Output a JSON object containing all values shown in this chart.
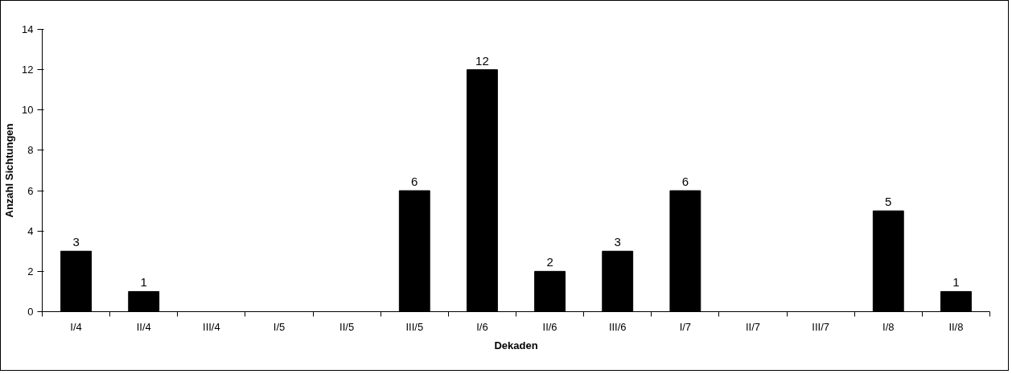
{
  "chart_data": {
    "type": "bar",
    "xlabel": "Dekaden",
    "ylabel": "Anzahl Sichtungen",
    "categories": [
      "I/4",
      "II/4",
      "III/4",
      "I/5",
      "II/5",
      "III/5",
      "I/6",
      "II/6",
      "III/6",
      "I/7",
      "II/7",
      "III/7",
      "I/8",
      "II/8"
    ],
    "values": [
      3,
      1,
      0,
      0,
      0,
      6,
      12,
      2,
      3,
      6,
      0,
      0,
      5,
      1
    ],
    "value_labels": [
      "3",
      "1",
      null,
      null,
      null,
      "6",
      "12",
      "2",
      "3",
      "6",
      null,
      null,
      "5",
      "1"
    ],
    "color": "#000000",
    "ylim": [
      0,
      14
    ],
    "yticks": [
      0,
      2,
      4,
      6,
      8,
      10,
      12,
      14
    ],
    "grid": false
  }
}
